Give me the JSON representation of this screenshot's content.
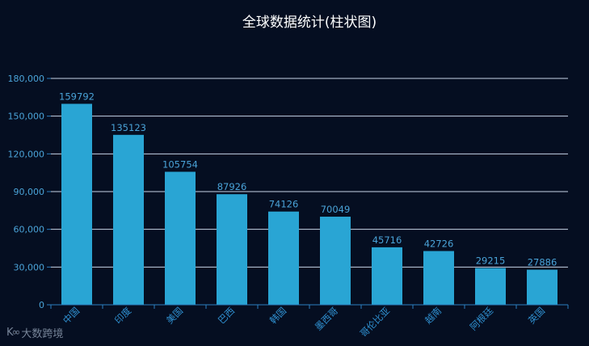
{
  "chart_data": {
    "type": "bar",
    "title": "全球数据统计(柱状图)",
    "categories": [
      "中国",
      "印度",
      "美国",
      "巴西",
      "韩国",
      "墨西哥",
      "哥伦比亚",
      "越南",
      "阿根廷",
      "英国"
    ],
    "values": [
      159792,
      135123,
      105754,
      87926,
      74126,
      70049,
      45716,
      42726,
      29215,
      27886
    ],
    "yticks": [
      "0",
      "30,000",
      "60,000",
      "90,000",
      "120,000",
      "150,000",
      "180,000"
    ],
    "ylim": [
      0,
      180000
    ],
    "grid": true,
    "bar_color": "#29a5d4",
    "grid_color": "#c8d4e6",
    "axis_color": "#2b7fc0",
    "label_color": "#4aa3d8"
  },
  "watermark": {
    "text": "大数跨境",
    "icon": "k-logo-icon"
  }
}
